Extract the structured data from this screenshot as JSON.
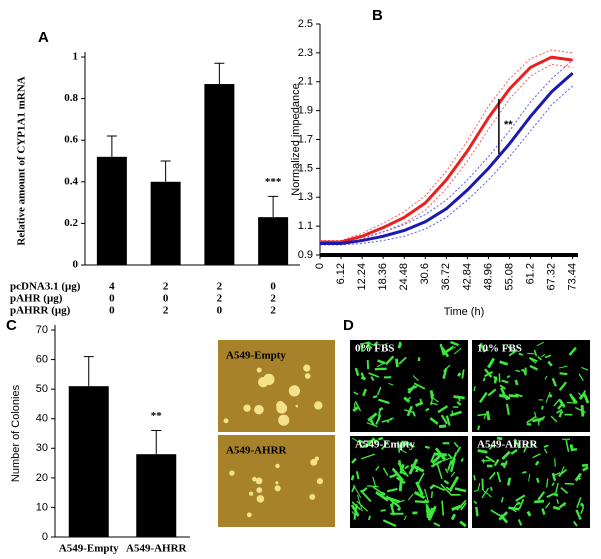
{
  "panel_labels": [
    "A",
    "B",
    "C",
    "D"
  ],
  "images": {
    "C": [
      "A549-Empty",
      "A549-AHRR"
    ],
    "D": [
      "0% FBS",
      "10% FBS",
      "A549-Empty",
      "A549-AHRR"
    ]
  },
  "chart_data": [
    {
      "type": "bar",
      "y_label": "Relative amount of CYP1A1 mRNA",
      "annotation": "***",
      "categories": [
        null,
        null,
        null,
        null
      ],
      "values": [
        0.52,
        0.4,
        0.87,
        0.23
      ],
      "errors": [
        0.1,
        0.1,
        0.1,
        0.1
      ],
      "color": "#000000",
      "ylim": [
        0,
        1
      ],
      "yticks": [
        0,
        0.2,
        0.4,
        0.6,
        0.8,
        1
      ],
      "table": {
        "rows": [
          {
            "label": "pcDNA3.1 (μg)",
            "values": [
              4,
              2,
              2,
              0
            ]
          },
          {
            "label": "pAHR (μg)",
            "values": [
              0,
              0,
              2,
              2
            ]
          },
          {
            "label": "pAHRR (μg)",
            "values": [
              0,
              2,
              0,
              2
            ]
          }
        ]
      }
    },
    {
      "type": "line",
      "x_label": "Time (h)",
      "y_label": "Normalized impedance",
      "annotation": "**",
      "x": [
        0,
        6.12,
        12.24,
        18.36,
        24.48,
        30.6,
        36.72,
        42.84,
        48.96,
        55.08,
        61.2,
        67.32,
        73.44
      ],
      "series": [
        {
          "color": "#ff5a5a",
          "dashed": true,
          "values": [
            1.0,
            1.0,
            1.05,
            1.12,
            1.2,
            1.31,
            1.48,
            1.69,
            1.93,
            2.12,
            2.26,
            2.32,
            2.3
          ]
        },
        {
          "color": "#ff5a5a",
          "dashed": true,
          "values": [
            0.98,
            0.98,
            1.01,
            1.06,
            1.12,
            1.21,
            1.36,
            1.55,
            1.77,
            1.98,
            2.14,
            2.22,
            2.2
          ]
        },
        {
          "color": "#5a5aff",
          "dashed": true,
          "values": [
            0.99,
            0.99,
            1.02,
            1.06,
            1.11,
            1.18,
            1.28,
            1.42,
            1.58,
            1.76,
            1.96,
            2.12,
            2.25
          ]
        },
        {
          "color": "#5a5aff",
          "dashed": true,
          "values": [
            0.97,
            0.97,
            0.98,
            1.0,
            1.03,
            1.08,
            1.16,
            1.28,
            1.42,
            1.58,
            1.76,
            1.94,
            2.07
          ]
        },
        {
          "color": "#e8201e",
          "dashed": false,
          "values": [
            0.99,
            0.99,
            1.03,
            1.09,
            1.16,
            1.26,
            1.42,
            1.62,
            1.85,
            2.05,
            2.2,
            2.27,
            2.25
          ]
        },
        {
          "color": "#1a1ab0",
          "dashed": false,
          "values": [
            0.98,
            0.98,
            1.0,
            1.03,
            1.07,
            1.13,
            1.22,
            1.35,
            1.5,
            1.67,
            1.86,
            2.03,
            2.16
          ]
        }
      ],
      "xlim": [
        0,
        75
      ],
      "xticks": [
        0,
        6.12,
        12.24,
        18.36,
        24.48,
        30.6,
        36.72,
        42.84,
        48.96,
        55.08,
        61.2,
        67.32,
        73.44
      ],
      "ylim": [
        0.9,
        2.5
      ],
      "yticks": [
        0.9,
        1.1,
        1.3,
        1.5,
        1.7,
        1.9,
        2.1,
        2.3,
        2.5
      ]
    },
    {
      "type": "bar",
      "y_label": "Number of Colonies",
      "annotation": "**",
      "categories": [
        "A549-Empty",
        "A549-AHRR"
      ],
      "values": [
        51,
        28
      ],
      "errors": [
        10,
        8
      ],
      "color": "#000000",
      "ylim": [
        0,
        70
      ],
      "yticks": [
        0,
        10,
        20,
        30,
        40,
        50,
        60,
        70
      ]
    }
  ]
}
